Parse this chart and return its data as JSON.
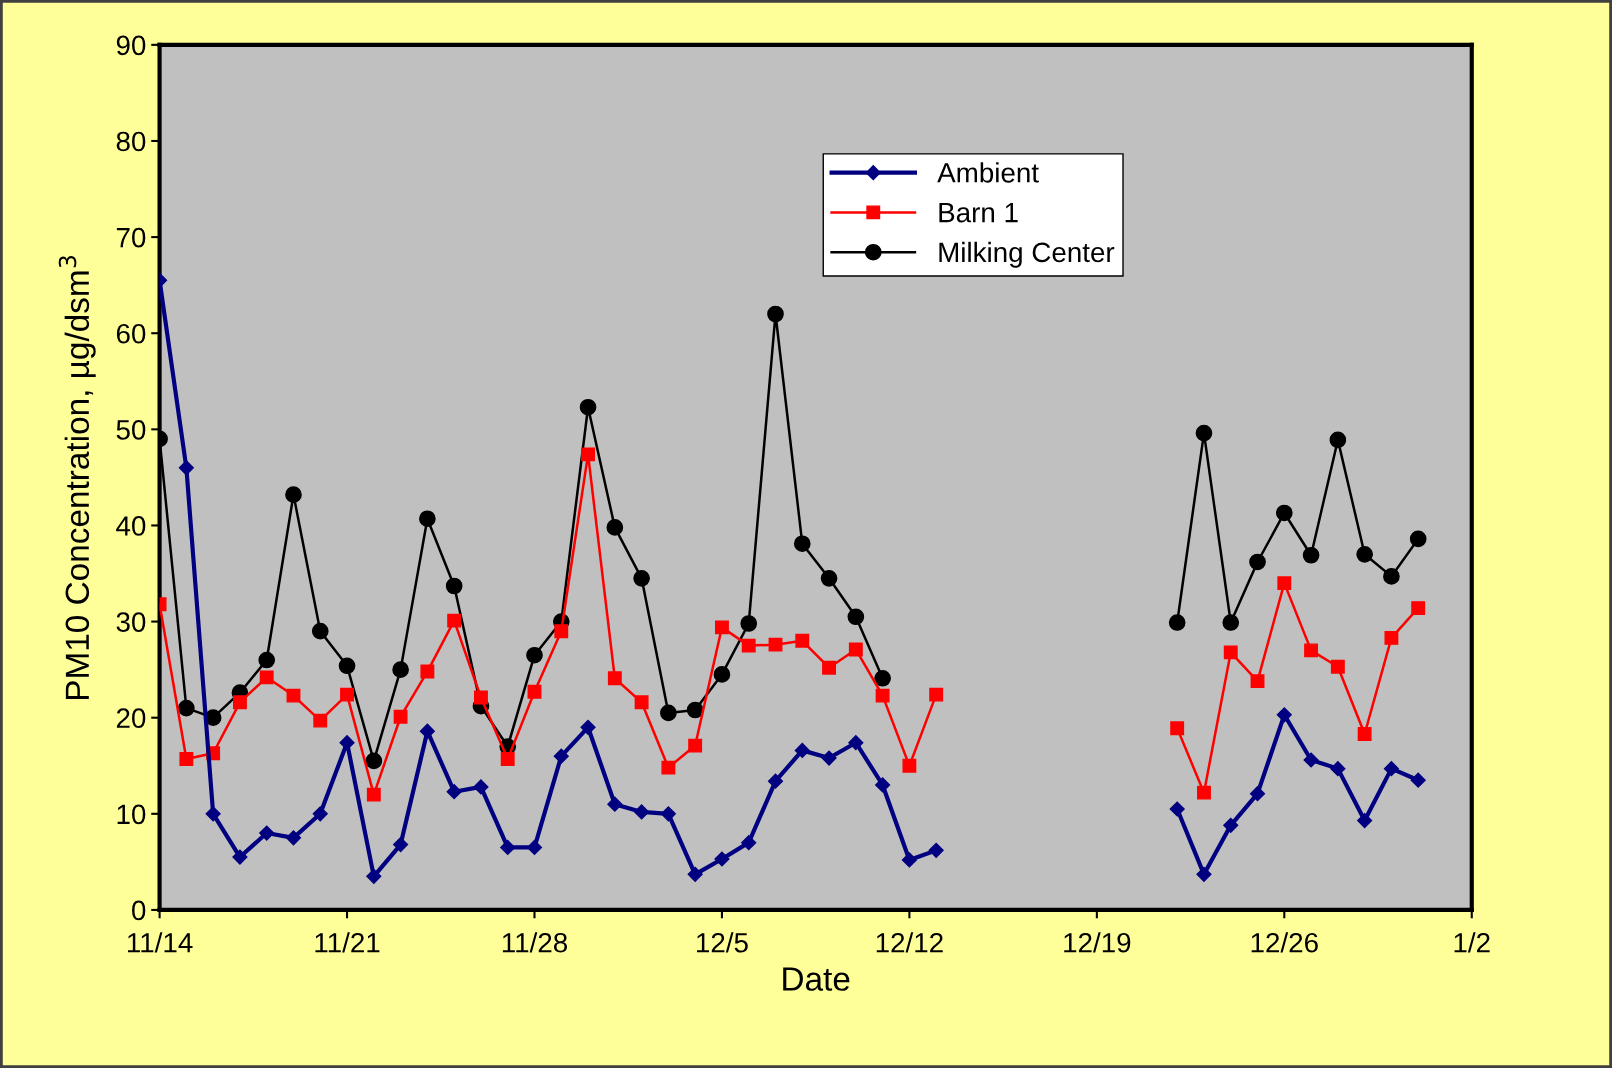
{
  "chart_data": {
    "type": "line",
    "xlabel": "Date",
    "ylabel": "PM10 Concentration, µg/dsm$^{3}$",
    "categories": [
      "11/14",
      null,
      null,
      null,
      null,
      null,
      null,
      "11/21",
      null,
      null,
      null,
      null,
      null,
      null,
      "11/28",
      null,
      null,
      null,
      null,
      null,
      null,
      "12/5",
      null,
      null,
      null,
      null,
      null,
      null,
      "12/12",
      null,
      null,
      null,
      null,
      null,
      null,
      "12/19",
      null,
      null,
      null,
      null,
      null,
      null,
      "12/26",
      null,
      null,
      null,
      null,
      null,
      null,
      "1/2"
    ],
    "series": [
      {
        "name": "Ambient",
        "color": "#000080",
        "marker": "diamond",
        "values": [
          65.5,
          46,
          10,
          5.5,
          8,
          7.5,
          10,
          17.4,
          3.5,
          6.8,
          18.6,
          12.3,
          12.8,
          6.5,
          6.5,
          16,
          19,
          11,
          10.2,
          10,
          3.7,
          5.3,
          7,
          13.4,
          16.6,
          15.8,
          17.4,
          13,
          5.2,
          6.2,
          null,
          null,
          null,
          null,
          null,
          null,
          null,
          null,
          10.5,
          3.7,
          8.8,
          12.1,
          20.3,
          15.6,
          14.7,
          9.3,
          14.7,
          13.5,
          null,
          null
        ]
      },
      {
        "name": "Barn 1",
        "color": "#ff0000",
        "marker": "square",
        "values": [
          31.8,
          15.7,
          16.3,
          21.6,
          24.2,
          22.3,
          19.7,
          22.4,
          12,
          20.1,
          24.8,
          30.1,
          22.1,
          15.7,
          22.7,
          29,
          47.4,
          24.1,
          21.6,
          14.8,
          17.1,
          29.4,
          27.5,
          27.6,
          28,
          25.2,
          27.1,
          22.3,
          15,
          22.4,
          null,
          null,
          null,
          null,
          null,
          null,
          null,
          null,
          18.9,
          12.2,
          26.8,
          23.8,
          34,
          27,
          25.3,
          18.3,
          28.3,
          31.4,
          null,
          null
        ]
      },
      {
        "name": "Milking Center",
        "color": "#000000",
        "marker": "circle",
        "values": [
          49,
          21,
          20,
          22.6,
          26,
          43.2,
          29,
          25.4,
          15.5,
          25,
          40.7,
          33.7,
          21.2,
          17,
          26.5,
          30,
          52.3,
          39.8,
          34.5,
          20.5,
          20.8,
          24.5,
          29.8,
          62,
          38.1,
          34.5,
          30.5,
          24.1,
          null,
          null,
          null,
          null,
          null,
          null,
          null,
          null,
          null,
          null,
          29.9,
          49.6,
          29.9,
          36.2,
          41.3,
          36.9,
          48.9,
          37,
          34.7,
          38.6,
          null,
          null
        ]
      }
    ],
    "ylim": [
      0,
      90
    ],
    "yticks": [
      0,
      10,
      20,
      30,
      40,
      50,
      60,
      70,
      80,
      90
    ],
    "grid": false,
    "legend": "top",
    "line_style": "solid"
  }
}
